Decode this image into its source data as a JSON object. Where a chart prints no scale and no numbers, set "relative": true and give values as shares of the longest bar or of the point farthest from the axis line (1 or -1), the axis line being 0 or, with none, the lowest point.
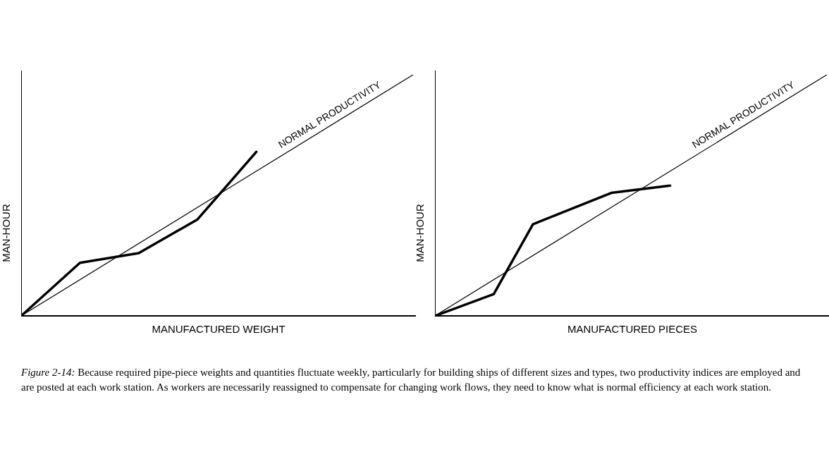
{
  "chart_data": [
    {
      "type": "line",
      "relative": true,
      "xlabel": "MANUFACTURED WEIGHT",
      "ylabel": "MAN-HOUR",
      "marker": "none",
      "legend": false,
      "categories": [
        null,
        null,
        null,
        null,
        null,
        null,
        null,
        null,
        null,
        null,
        null,
        null,
        null,
        null,
        null,
        null,
        null,
        null,
        null,
        null,
        null
      ],
      "series": [
        {
          "name": "NORMAL PRODUCTIVITY",
          "color": "#000000",
          "values": [
            0,
            null,
            null,
            null,
            null,
            null,
            null,
            null,
            null,
            null,
            null,
            null,
            null,
            null,
            null,
            null,
            null,
            null,
            null,
            null,
            1
          ]
        },
        {
          "color": "#000000",
          "values": [
            0,
            null,
            null,
            0.22,
            null,
            null,
            0.26,
            null,
            null,
            0.4,
            null,
            null,
            0.68,
            null,
            null,
            null,
            null,
            null,
            null,
            null,
            null
          ]
        }
      ],
      "annotations": [
        "Figure 2-14: Because required pipe-piece weights and quantities fluctuate weekly, particularly for building ships of different sizes and types, two productivity indices are employed and are posted at each work station. As workers are necessarily reassigned to compensate for changing work flows, they need to know what is normal efficiency at each work station."
      ]
    },
    {
      "type": "line",
      "relative": true,
      "xlabel": "MANUFACTURED PIECES",
      "ylabel": "MAN-HOUR",
      "marker": "none",
      "legend": false,
      "categories": [
        null,
        null,
        null,
        null,
        null,
        null,
        null,
        null,
        null,
        null,
        null,
        null,
        null,
        null,
        null,
        null,
        null,
        null,
        null,
        null,
        null
      ],
      "series": [
        {
          "name": "NORMAL PRODUCTIVITY",
          "color": "#000000",
          "values": [
            0,
            null,
            null,
            null,
            null,
            null,
            null,
            null,
            null,
            null,
            null,
            null,
            null,
            null,
            null,
            null,
            null,
            null,
            null,
            null,
            1
          ]
        },
        {
          "color": "#000000",
          "values": [
            0,
            null,
            null,
            0.09,
            null,
            0.38,
            null,
            null,
            null,
            0.51,
            null,
            null,
            0.54,
            null,
            null,
            null,
            null,
            null,
            null,
            null,
            null
          ]
        }
      ]
    }
  ]
}
